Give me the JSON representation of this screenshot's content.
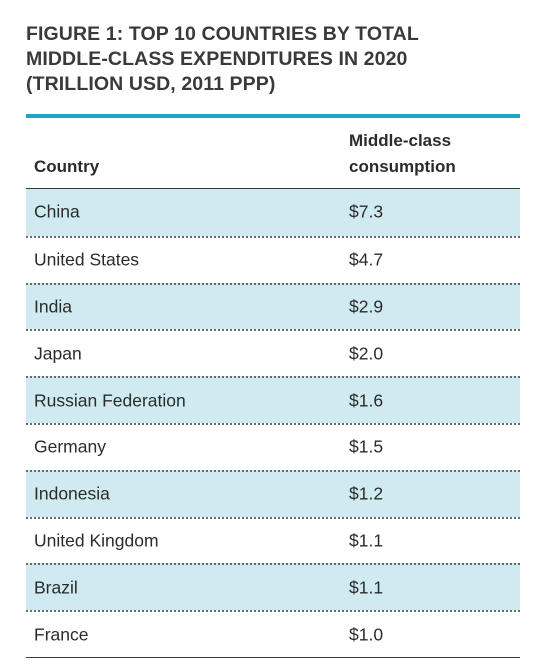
{
  "figure": {
    "title_lines": [
      "FIGURE 1: TOP 10 COUNTRIES BY TOTAL",
      "MIDDLE-CLASS EXPENDITURES IN 2020",
      "(TRILLION USD, 2011 PPP)"
    ]
  },
  "colors": {
    "accent_rule": "#1fa5c4",
    "row_shade": "#cfebf1",
    "text": "#2b2b2b"
  },
  "table": {
    "headers": {
      "country": "Country",
      "value_line1": "Middle-class",
      "value_line2": "consumption"
    },
    "rows": [
      {
        "country": "China",
        "value": "$7.3",
        "shaded": true
      },
      {
        "country": "United States",
        "value": "$4.7",
        "shaded": false
      },
      {
        "country": "India",
        "value": "$2.9",
        "shaded": true
      },
      {
        "country": "Japan",
        "value": "$2.0",
        "shaded": false
      },
      {
        "country": "Russian Federation",
        "value": "$1.6",
        "shaded": true
      },
      {
        "country": "Germany",
        "value": "$1.5",
        "shaded": false
      },
      {
        "country": "Indonesia",
        "value": "$1.2",
        "shaded": true
      },
      {
        "country": "United Kingdom",
        "value": "$1.1",
        "shaded": false
      },
      {
        "country": "Brazil",
        "value": "$1.1",
        "shaded": true
      },
      {
        "country": "France",
        "value": "$1.0",
        "shaded": false
      }
    ]
  }
}
